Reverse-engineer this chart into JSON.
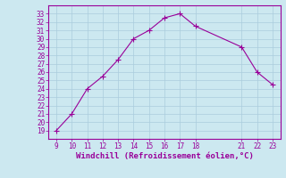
{
  "x": [
    9,
    10,
    11,
    12,
    13,
    14,
    15,
    16,
    17,
    18,
    21,
    22,
    23
  ],
  "y": [
    19,
    21,
    24,
    25.5,
    27.5,
    30,
    31,
    32.5,
    33,
    31.5,
    29,
    26,
    24.5
  ],
  "line_color": "#990099",
  "marker": "+",
  "marker_size": 4,
  "bg_color": "#cce8f0",
  "grid_color": "#aaccdd",
  "xlabel": "Windchill (Refroidissement éolien,°C)",
  "xlabel_color": "#990099",
  "tick_color": "#990099",
  "xlim": [
    8.5,
    23.5
  ],
  "ylim": [
    18,
    34
  ],
  "xticks": [
    9,
    10,
    11,
    12,
    13,
    14,
    15,
    16,
    17,
    18,
    21,
    22,
    23
  ],
  "yticks": [
    19,
    20,
    21,
    22,
    23,
    24,
    25,
    26,
    27,
    28,
    29,
    30,
    31,
    32,
    33
  ],
  "ytick_labels": [
    "19",
    "20",
    "21",
    "22",
    "23",
    "24",
    "25",
    "26",
    "27",
    "28",
    "29",
    "30",
    "31",
    "32",
    "33"
  ],
  "xtick_labels": [
    "9",
    "10",
    "11",
    "12",
    "13",
    "14",
    "15",
    "16",
    "17",
    "18",
    "21",
    "22",
    "23"
  ],
  "spine_color": "#990099",
  "font_size": 5.5,
  "xlabel_font_size": 6.5
}
